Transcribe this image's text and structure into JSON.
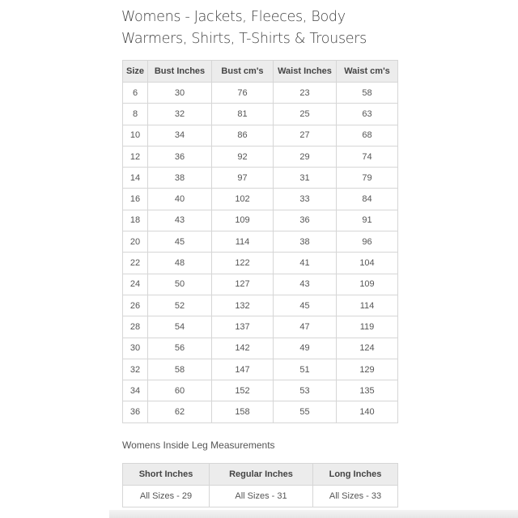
{
  "title": "Womens - Jackets, Fleeces, Body Warmers, Shirts, T-Shirts & Trousers",
  "size_table": {
    "headers": [
      "Size",
      "Bust Inches",
      "Bust cm's",
      "Waist Inches",
      "Waist cm's"
    ],
    "rows": [
      [
        "6",
        "30",
        "76",
        "23",
        "58"
      ],
      [
        "8",
        "32",
        "81",
        "25",
        "63"
      ],
      [
        "10",
        "34",
        "86",
        "27",
        "68"
      ],
      [
        "12",
        "36",
        "92",
        "29",
        "74"
      ],
      [
        "14",
        "38",
        "97",
        "31",
        "79"
      ],
      [
        "16",
        "40",
        "102",
        "33",
        "84"
      ],
      [
        "18",
        "43",
        "109",
        "36",
        "91"
      ],
      [
        "20",
        "45",
        "114",
        "38",
        "96"
      ],
      [
        "22",
        "48",
        "122",
        "41",
        "104"
      ],
      [
        "24",
        "50",
        "127",
        "43",
        "109"
      ],
      [
        "26",
        "52",
        "132",
        "45",
        "114"
      ],
      [
        "28",
        "54",
        "137",
        "47",
        "119"
      ],
      [
        "30",
        "56",
        "142",
        "49",
        "124"
      ],
      [
        "32",
        "58",
        "147",
        "51",
        "129"
      ],
      [
        "34",
        "60",
        "152",
        "53",
        "135"
      ],
      [
        "36",
        "62",
        "158",
        "55",
        "140"
      ]
    ]
  },
  "leg_section": {
    "title": "Womens Inside Leg Measurements",
    "headers": [
      "Short Inches",
      "Regular Inches",
      "Long Inches"
    ],
    "values": [
      "All Sizes - 29",
      "All Sizes - 31",
      "All Sizes - 33"
    ]
  }
}
